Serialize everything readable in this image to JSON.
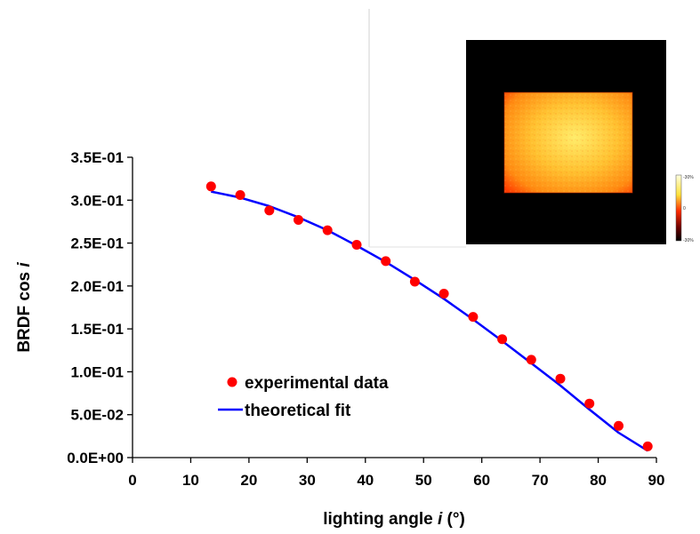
{
  "chart_data": {
    "type": "scatter",
    "xlabel": "lighting angle",
    "xlabel_var": "i",
    "xlabel_unit": "(°)",
    "ylabel": "BRDF cos",
    "ylabel_var": "i",
    "xlim": [
      0,
      90
    ],
    "ylim": [
      0,
      0.35
    ],
    "x_ticks": [
      "0",
      "10",
      "20",
      "30",
      "40",
      "50",
      "60",
      "70",
      "80",
      "90"
    ],
    "y_ticks": [
      "0.0E+00",
      "5.0E-02",
      "1.0E-01",
      "1.5E-01",
      "2.0E-01",
      "2.5E-01",
      "3.0E-01",
      "3.5E-01"
    ],
    "grid": false,
    "legend_position": "bottom-left",
    "series": [
      {
        "name": "experimental data",
        "kind": "scatter",
        "color": "#ff0000",
        "x": [
          13.5,
          18.5,
          23.5,
          28.5,
          33.5,
          38.5,
          43.5,
          48.5,
          53.5,
          58.5,
          63.5,
          68.5,
          73.5,
          78.5,
          83.5,
          88.5
        ],
        "y": [
          0.316,
          0.306,
          0.288,
          0.277,
          0.265,
          0.248,
          0.229,
          0.205,
          0.191,
          0.164,
          0.138,
          0.114,
          0.092,
          0.063,
          0.037,
          0.013
        ]
      },
      {
        "name": "theoretical fit",
        "kind": "line",
        "color": "#0000ff",
        "x": [
          13.5,
          18.5,
          23.5,
          28.5,
          33.5,
          38.5,
          43.5,
          48.5,
          53.5,
          58.5,
          63.5,
          68.5,
          73.5,
          78.5,
          83.5,
          88.5
        ],
        "y": [
          0.31,
          0.303,
          0.293,
          0.28,
          0.265,
          0.247,
          0.228,
          0.207,
          0.185,
          0.161,
          0.136,
          0.11,
          0.084,
          0.056,
          0.029,
          0.008
        ]
      }
    ],
    "inset": {
      "description_free": true,
      "scale_labels": [
        "-30%",
        "0",
        "-30%"
      ],
      "colors": {
        "background": "#000000",
        "scale_top": "#ffffe0",
        "scale_mid": "#ff2a00",
        "scale_bottom": "#000000"
      }
    }
  }
}
